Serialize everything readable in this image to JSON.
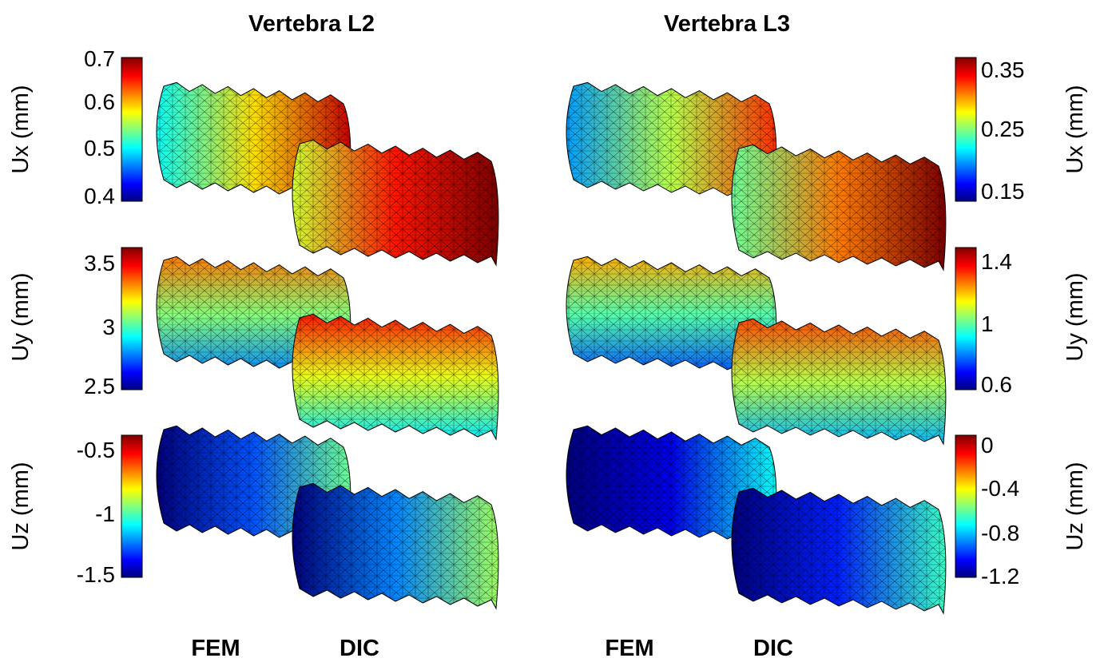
{
  "columns": [
    {
      "title": "Vertebra L2",
      "footer_left": "FEM",
      "footer_right": "DIC"
    },
    {
      "title": "Vertebra L3",
      "footer_left": "FEM",
      "footer_right": "DIC"
    }
  ],
  "colormap": {
    "name": "jet",
    "stops": [
      "#00007f",
      "#0000ff",
      "#00ffff",
      "#ffff00",
      "#ff0000",
      "#7f0000"
    ]
  },
  "rows": [
    {
      "label": "Ux (mm)",
      "L2": {
        "range": [
          0.4,
          0.7
        ],
        "ticks": [
          "0.7",
          "0.6",
          "0.5",
          "0.4"
        ],
        "fem_level": 0.65,
        "dic_level": 0.85
      },
      "L3": {
        "range": [
          0.15,
          0.35
        ],
        "ticks": [
          "0.35",
          "0.25",
          "0.15"
        ],
        "fem_level": 0.55,
        "dic_level": 0.75
      }
    },
    {
      "label": "Uy (mm)",
      "L2": {
        "range": [
          2.5,
          3.5
        ],
        "ticks": [
          "3.5",
          "3",
          "2.5"
        ],
        "fem_level": 0.5,
        "dic_level": 0.6
      },
      "L3": {
        "range": [
          0.6,
          1.4
        ],
        "ticks": [
          "1.4",
          "1",
          "0.6"
        ],
        "fem_level": 0.45,
        "dic_level": 0.55
      }
    },
    {
      "label": "Uz (mm)",
      "L2": {
        "range": [
          -1.5,
          -0.5
        ],
        "ticks": [
          "-0.5",
          "-1",
          "-1.5"
        ],
        "fem_level": 0.2,
        "dic_level": 0.25
      },
      "L3": {
        "range": [
          -1.2,
          0
        ],
        "ticks": [
          "0",
          "-0.4",
          "-0.8",
          "-1.2"
        ],
        "fem_level": 0.1,
        "dic_level": 0.15
      }
    }
  ]
}
